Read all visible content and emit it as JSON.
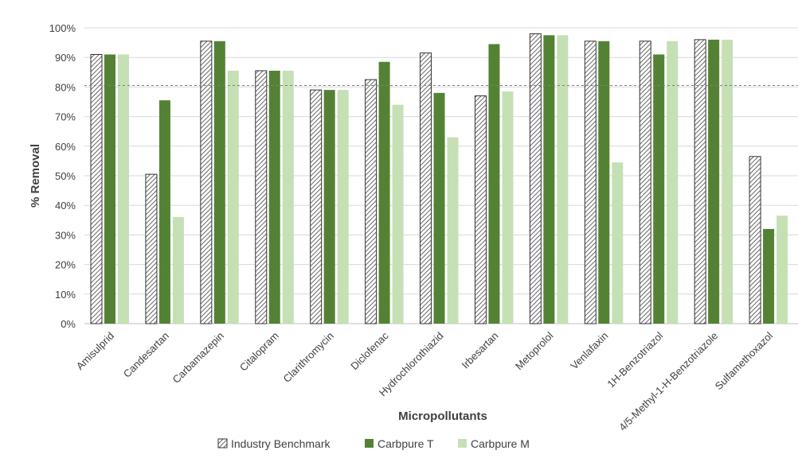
{
  "chart_data": {
    "type": "bar",
    "xlabel": "Micropollutants",
    "ylabel": "% Removal",
    "ylim": [
      0,
      100
    ],
    "yticks": [
      "0%",
      "10%",
      "20%",
      "30%",
      "40%",
      "50%",
      "60%",
      "70%",
      "80%",
      "90%",
      "100%"
    ],
    "grid": true,
    "reference_line": 80.5,
    "legend_position": "bottom",
    "categories": [
      "Amisulprid",
      "Candesartan",
      "Carbamazepin",
      "Citalopram",
      "Clarithromycin",
      "Diclofenac",
      "Hydrochlorothiazid",
      "Irbesartan",
      "Metoprolol",
      "Venlafaxin",
      "1H-Benzotriazol",
      "4/5-Methyl-1-H-Benzotriazole",
      "Sulfamethoxazol"
    ],
    "series": [
      {
        "name": "Industry Benchmark",
        "color": "#ffffff",
        "pattern": "hatch",
        "values": [
          91,
          50.5,
          95.5,
          85.5,
          79,
          82.5,
          91.5,
          77,
          98,
          95.5,
          95.5,
          96,
          56.5
        ]
      },
      {
        "name": "Carbpure T",
        "color": "#548235",
        "pattern": "solid",
        "values": [
          91,
          75.5,
          95.5,
          85.5,
          79,
          88.5,
          78,
          94.5,
          97.5,
          95.5,
          91,
          96,
          32
        ]
      },
      {
        "name": "Carbpure M",
        "color": "#c5e0b4",
        "pattern": "solid",
        "values": [
          91,
          36,
          85.5,
          85.5,
          79,
          74,
          63,
          78.5,
          97.5,
          54.5,
          95.5,
          96,
          36.5
        ]
      }
    ],
    "colors": {
      "grid": "#d9d9d9",
      "axis": "#bfbfbf",
      "text": "#404040",
      "hatch_stroke": "#404040",
      "bar_outline": "#333333"
    }
  }
}
